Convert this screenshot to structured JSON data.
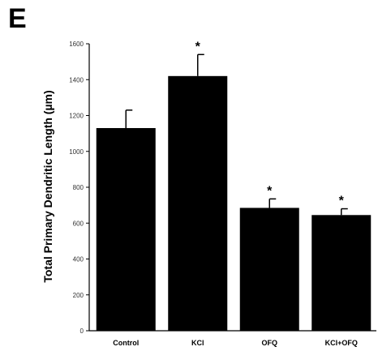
{
  "panel_label": "E",
  "chart_data": {
    "type": "bar",
    "title": "",
    "xlabel": "",
    "ylabel": "Total Primary Dendritic Length (µm)",
    "ylim": [
      0,
      1600
    ],
    "yticks": [
      0,
      200,
      400,
      600,
      800,
      1000,
      1200,
      1400,
      1600
    ],
    "ytick_labels": [
      "0",
      "200",
      "400",
      "600",
      "800",
      "1000",
      "1200",
      "1400",
      "1600"
    ],
    "categories": [
      "Control",
      "KCl",
      "OFQ",
      "KCl+OFQ"
    ],
    "values": [
      1130,
      1420,
      685,
      645
    ],
    "errors": [
      100,
      120,
      50,
      35
    ],
    "significance": [
      "",
      "*",
      "*",
      "*"
    ],
    "bar_color": "#000000",
    "grid": false,
    "legend": "none"
  }
}
